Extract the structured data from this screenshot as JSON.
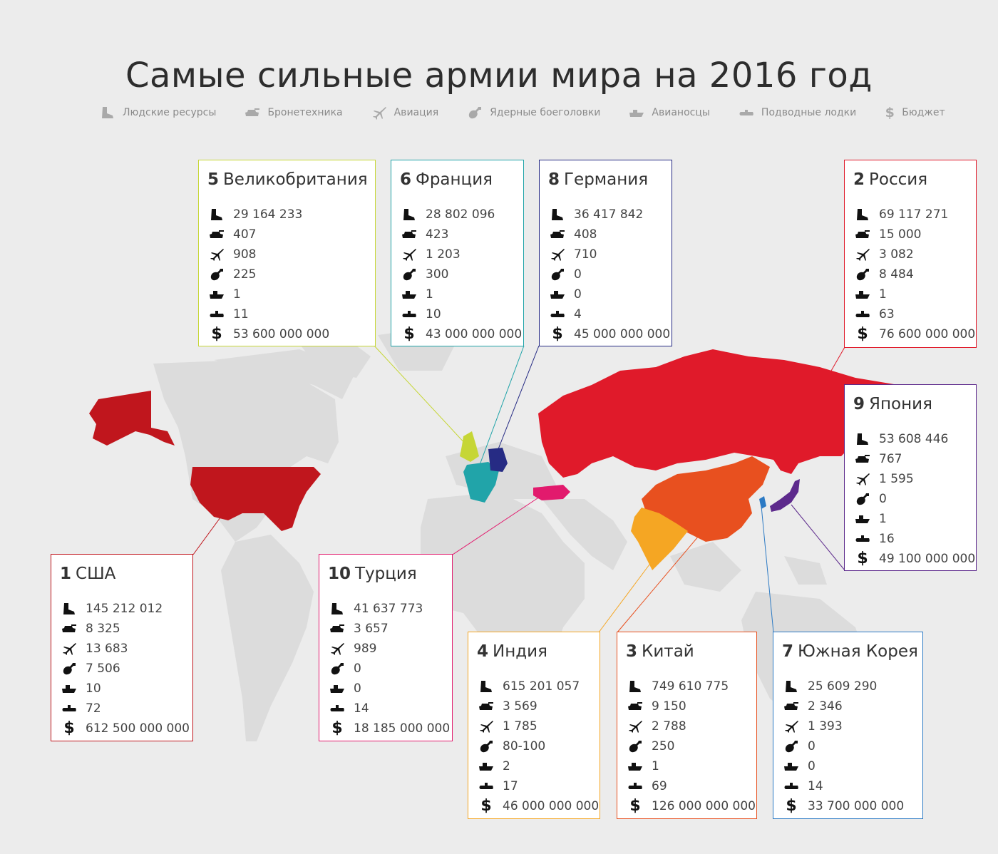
{
  "title": "Самые сильные армии мира на 2016 год",
  "legend": [
    {
      "icon": "boot-icon",
      "label": "Людские ресурсы"
    },
    {
      "icon": "tank-icon",
      "label": "Бронетехника"
    },
    {
      "icon": "jet-icon",
      "label": "Авиация"
    },
    {
      "icon": "bomb-icon",
      "label": "Ядерные боеголовки"
    },
    {
      "icon": "carrier-icon",
      "label": "Авианосцы"
    },
    {
      "icon": "submarine-icon",
      "label": "Подводные лодки"
    },
    {
      "icon": "dollar-icon",
      "label": "Бюджет"
    }
  ],
  "countries": [
    {
      "rank": "5",
      "name": "Великобритания",
      "color": "#c6d636",
      "values": [
        "29 164 233",
        "407",
        "908",
        "225",
        "1",
        "11",
        "53 600 000 000"
      ]
    },
    {
      "rank": "6",
      "name": "Франция",
      "color": "#21a4a9",
      "values": [
        "28 802 096",
        "423",
        "1 203",
        "300",
        "1",
        "10",
        "43 000 000 000"
      ]
    },
    {
      "rank": "8",
      "name": "Германия",
      "color": "#262b84",
      "values": [
        "36 417 842",
        "408",
        "710",
        "0",
        "0",
        "4",
        "45 000 000 000"
      ]
    },
    {
      "rank": "2",
      "name": "Россия",
      "color": "#e01a2a",
      "values": [
        "69 117 271",
        "15 000",
        "3 082",
        "8 484",
        "1",
        "63",
        "76 600 000 000"
      ]
    },
    {
      "rank": "9",
      "name": "Япония",
      "color": "#5d2a8c",
      "values": [
        "53 608 446",
        "767",
        "1 595",
        "0",
        "1",
        "16",
        "49 100 000 000"
      ]
    },
    {
      "rank": "1",
      "name": "США",
      "color": "#c0161d",
      "values": [
        "145 212 012",
        "8 325",
        "13 683",
        "7 506",
        "10",
        "72",
        "612 500 000 000"
      ]
    },
    {
      "rank": "10",
      "name": "Турция",
      "color": "#e21a6d",
      "values": [
        "41 637 773",
        "3 657",
        "989",
        "0",
        "0",
        "14",
        "18 185 000 000"
      ]
    },
    {
      "rank": "4",
      "name": "Индия",
      "color": "#f5a623",
      "values": [
        "615 201 057",
        "3 569",
        "1 785",
        "80-100",
        "2",
        "17",
        "46 000 000 000"
      ]
    },
    {
      "rank": "3",
      "name": "Китай",
      "color": "#e8501f",
      "values": [
        "749 610 775",
        "9 150",
        "2 788",
        "250",
        "1",
        "69",
        "126 000 000 000"
      ]
    },
    {
      "rank": "7",
      "name": "Южная Корея",
      "color": "#2c7ac4",
      "values": [
        "25 609 290",
        "2 346",
        "1 393",
        "0",
        "0",
        "14",
        "33 700 000 000"
      ]
    }
  ]
}
